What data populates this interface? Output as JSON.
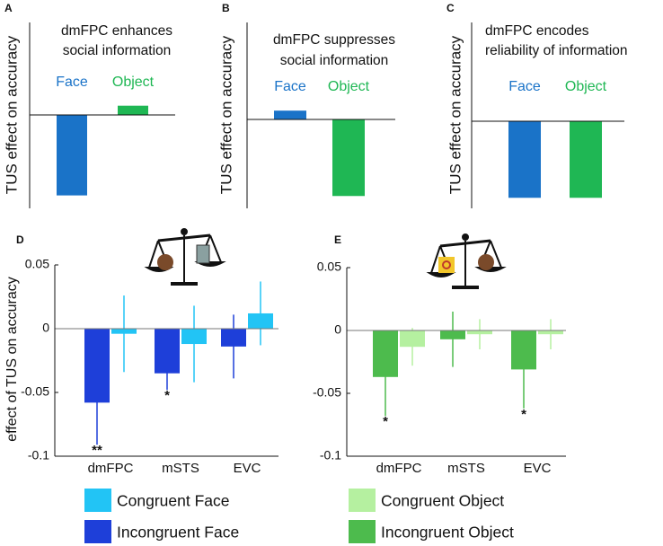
{
  "chart_data": [
    {
      "type": "schematic",
      "panel": "A",
      "title": [
        "dmFPC enhances",
        "social information"
      ],
      "ylabel": "TUS effect on accuracy",
      "categories": [
        "Face",
        "Object"
      ],
      "values": [
        -0.87,
        0.1
      ],
      "colors": [
        "#1a73c8",
        "#1fb754"
      ],
      "ylim": [
        -1,
        1
      ]
    },
    {
      "type": "schematic",
      "panel": "B",
      "title": [
        "dmFPC suppresses",
        "social information"
      ],
      "ylabel": "TUS effect on accuracy",
      "categories": [
        "Face",
        "Object"
      ],
      "values": [
        0.1,
        -0.87
      ],
      "colors": [
        "#1a73c8",
        "#1fb754"
      ],
      "ylim": [
        -1,
        1
      ]
    },
    {
      "type": "schematic",
      "panel": "C",
      "title": [
        "dmFPC encodes",
        "reliability of information"
      ],
      "ylabel": "TUS effect on accuracy",
      "categories": [
        "Face",
        "Object"
      ],
      "values": [
        -0.87,
        -0.87
      ],
      "colors": [
        "#1a73c8",
        "#1fb754"
      ],
      "ylim": [
        -1,
        1
      ]
    },
    {
      "type": "grouped-bar",
      "panel": "D",
      "ylabel": "effect of TUS on accuracy",
      "categories": [
        "dmFPC",
        "mSTS",
        "EVC"
      ],
      "ylim": [
        -0.1,
        0.05
      ],
      "yticks": [
        -0.1,
        -0.05,
        0,
        0.05
      ],
      "series": [
        {
          "name": "Congruent Face",
          "color": "#22c4f5",
          "values": [
            -0.004,
            -0.012,
            0.012
          ],
          "errors": [
            0.03,
            0.03,
            0.025
          ],
          "stars": [
            null,
            null,
            null
          ]
        },
        {
          "name": "Incongruent Face",
          "color": "#1e3fd9",
          "values": [
            -0.058,
            -0.035,
            -0.014
          ],
          "errors": [
            0.033,
            0.013,
            0.025
          ],
          "stars": [
            "**",
            "*",
            null
          ]
        }
      ]
    },
    {
      "type": "grouped-bar",
      "panel": "E",
      "categories": [
        "dmFPC",
        "mSTS",
        "EVC"
      ],
      "ylim": [
        -0.1,
        0.05
      ],
      "yticks": [
        -0.1,
        -0.05,
        0,
        0.05
      ],
      "series": [
        {
          "name": "Congruent Object",
          "color": "#b5f0a0",
          "values": [
            -0.013,
            -0.003,
            -0.003
          ],
          "errors": [
            0.015,
            0.012,
            0.012
          ],
          "stars": [
            null,
            null,
            null
          ]
        },
        {
          "name": "Incongruent Object",
          "color": "#4dbb4d",
          "values": [
            -0.037,
            -0.007,
            -0.031
          ],
          "errors": [
            0.031,
            0.022,
            0.031
          ],
          "stars": [
            "*",
            null,
            "*"
          ]
        }
      ]
    }
  ]
}
